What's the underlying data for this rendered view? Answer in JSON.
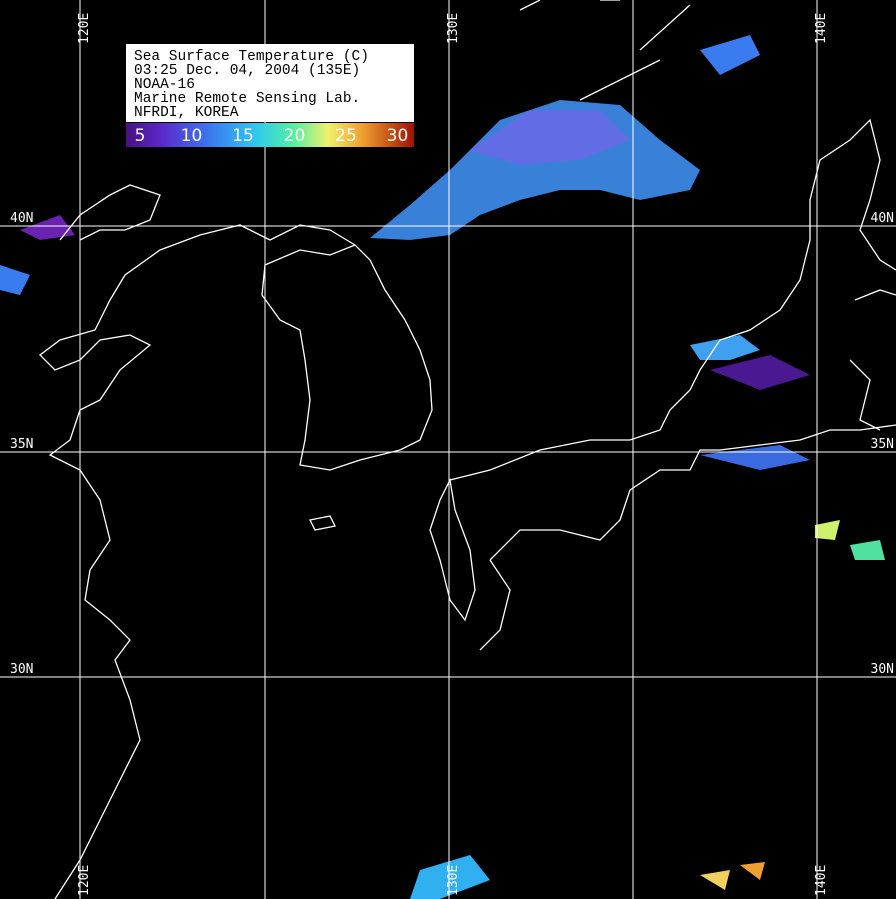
{
  "legend": {
    "lines": [
      "Sea Surface Temperature (C)",
      "03:25 Dec. 04, 2004 (135E)",
      "NOAA-16",
      "Marine Remote Sensing Lab.",
      "NFRDI, KOREA"
    ],
    "scale": [
      5,
      10,
      15,
      20,
      25,
      30
    ]
  },
  "longitude_labels": [
    "120E",
    "130E",
    "140E"
  ],
  "latitude_labels": [
    "40N",
    "35N",
    "30N"
  ]
}
